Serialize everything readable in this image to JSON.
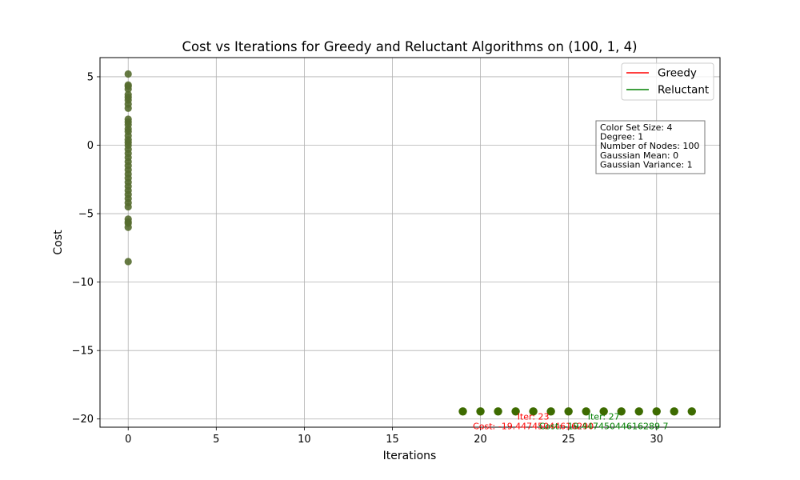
{
  "chart_data": {
    "type": "scatter",
    "title": "Cost vs Iterations for Greedy and Reluctant Algorithms on (100, 1, 4)",
    "xlabel": "Iterations",
    "ylabel": "Cost",
    "xlim": [
      -1.6,
      33.6
    ],
    "ylim": [
      -20.6,
      6.4
    ],
    "xticks": [
      0,
      5,
      10,
      15,
      20,
      25,
      30
    ],
    "yticks": [
      5,
      0,
      -5,
      -10,
      -15,
      -20
    ],
    "grid": true,
    "legend_position": "top-right",
    "colors": {
      "greedy": "#ff0000",
      "reluctant": "#008000",
      "points": "#3d6b00",
      "points_overlap": "#556b2f"
    },
    "series": [
      {
        "name": "Greedy",
        "color": "#ff0000"
      },
      {
        "name": "Reluctant",
        "color": "#008000"
      }
    ],
    "scatter_iter0": [
      5.2,
      4.4,
      4.3,
      4.1,
      3.7,
      3.5,
      3.3,
      3.0,
      2.7,
      1.9,
      1.7,
      1.5,
      1.2,
      1.0,
      0.7,
      0.4,
      0.2,
      0.0,
      -0.3,
      -0.6,
      -0.9,
      -1.2,
      -1.5,
      -1.8,
      -2.1,
      -2.4,
      -2.7,
      -3.0,
      -3.3,
      -3.6,
      -3.9,
      -4.2,
      -4.5,
      -5.4,
      -5.6,
      -5.7,
      -6.0,
      -8.5
    ],
    "scatter_tail": {
      "x": [
        19,
        20,
        21,
        22,
        23,
        24,
        25,
        26,
        27,
        28,
        29,
        30,
        31,
        32
      ],
      "y": -19.4474504461629
    },
    "info_box": [
      "Color Set Size: 4",
      "Degree: 1",
      "Number of Nodes: 100",
      "Gaussian Mean: 0",
      "Gaussian Variance: 1"
    ],
    "annotations": [
      {
        "lines": [
          "Iter: 23",
          "Cost: -19.44745044616290"
        ],
        "x": 23,
        "y": -19.4474504461629,
        "color": "#ff0000"
      },
      {
        "lines": [
          "Iter: 27",
          "Cost: -19.44745044616289 7"
        ],
        "x": 27,
        "y": -19.4474504461629,
        "color": "#008000"
      }
    ]
  }
}
